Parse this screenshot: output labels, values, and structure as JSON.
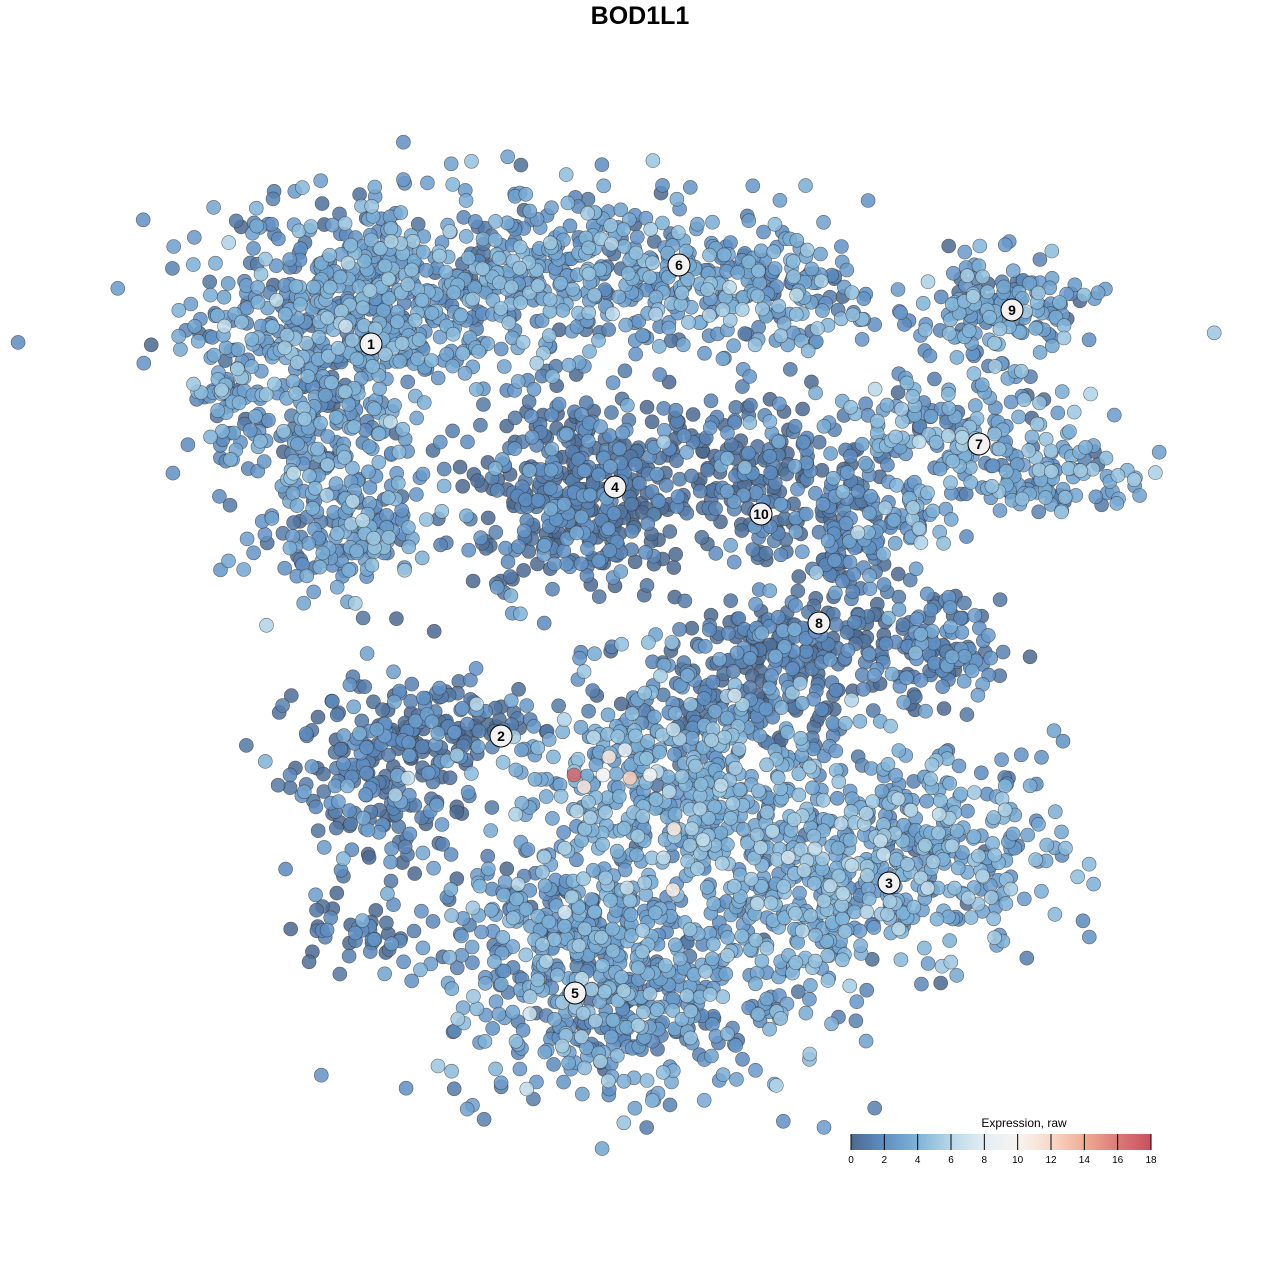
{
  "chart_data": {
    "type": "scatter",
    "title": "BOD1L1",
    "xlabel": "",
    "ylabel": "",
    "grid": false,
    "legend": {
      "title": "Expression, raw",
      "placement": "bottom-right",
      "range": [
        0,
        18
      ],
      "ticks": [
        "0",
        "2",
        "4",
        "6",
        "8",
        "10",
        "12",
        "14",
        "16",
        "18"
      ],
      "colors": [
        "#4b6990",
        "#5f8fc4",
        "#7fb3d8",
        "#b8d8e8",
        "#e4eef4",
        "#f7f4f2",
        "#f9d9c8",
        "#f0ac94",
        "#dc7a78",
        "#c8505e"
      ]
    },
    "point_style": {
      "stroke": "#333333"
    },
    "clusters": [
      {
        "label": "1",
        "label_pos": [
          -26.9,
          29.6
        ],
        "mean_expr": 2.6,
        "blobs": [
          [
            -26,
            34,
            9,
            5,
            520
          ],
          [
            -31,
            22,
            5,
            7,
            320
          ],
          [
            -29,
            10,
            4,
            2.5,
            110
          ],
          [
            -41,
            24,
            2,
            4,
            60
          ]
        ]
      },
      {
        "label": "6",
        "label_pos": [
          3.9,
          37.5
        ],
        "mean_expr": 2.8,
        "blobs": [
          [
            -2,
            37,
            10,
            4,
            360
          ],
          [
            12,
            34,
            5,
            3,
            130
          ]
        ]
      },
      {
        "label": "4",
        "label_pos": [
          -2.5,
          15.3
        ],
        "mean_expr": 0.8,
        "blobs": [
          [
            -6,
            14.5,
            5,
            5,
            420
          ]
        ]
      },
      {
        "label": "10",
        "label_pos": [
          12.1,
          12.6
        ],
        "mean_expr": 1.0,
        "blobs": [
          [
            11,
            18,
            5,
            4,
            160
          ],
          [
            12,
            12,
            2,
            3,
            50
          ]
        ]
      },
      {
        "label": "9",
        "label_pos": [
          37.2,
          33
        ],
        "mean_expr": 2.5,
        "blobs": [
          [
            36,
            33,
            5,
            2.5,
            160
          ]
        ]
      },
      {
        "label": "7",
        "label_pos": [
          33.9,
          19.6
        ],
        "mean_expr": 3.0,
        "blobs": [
          [
            32,
            21,
            6,
            3,
            160
          ],
          [
            42,
            16,
            4,
            2,
            90
          ],
          [
            27,
            13,
            3,
            2,
            50
          ]
        ]
      },
      {
        "label": "8",
        "label_pos": [
          17.9,
          1.7
        ],
        "mean_expr": 1.1,
        "blobs": [
          [
            21,
            8,
            2.5,
            5,
            130
          ],
          [
            29,
            -1,
            3.5,
            2.5,
            130
          ],
          [
            14,
            0,
            5,
            2,
            110
          ],
          [
            10,
            -6,
            6,
            3,
            160
          ]
        ]
      },
      {
        "label": "2",
        "label_pos": [
          -13.9,
          -9.6
        ],
        "mean_expr": 1.0,
        "blobs": [
          [
            -26,
            -14,
            4.5,
            4.5,
            210
          ],
          [
            -18,
            -8,
            4,
            2,
            90
          ],
          [
            -29,
            -29,
            3,
            1.5,
            40
          ]
        ]
      },
      {
        "label": "3",
        "label_pos": [
          24.9,
          -24.3
        ],
        "mean_expr": 3.2,
        "blobs": [
          [
            4,
            -16,
            9,
            6,
            520
          ],
          [
            26,
            -21,
            8,
            5,
            420
          ],
          [
            16,
            -29,
            4,
            4,
            100
          ]
        ]
      },
      {
        "label": "5",
        "label_pos": [
          -6.5,
          -35.3
        ],
        "mean_expr": 2.6,
        "blobs": [
          [
            -2,
            -36,
            9,
            5,
            460
          ],
          [
            -8,
            -28,
            6,
            3,
            160
          ]
        ]
      }
    ],
    "high_points": [
      [
        -6.6,
        -13.5,
        17
      ],
      [
        -5.6,
        -14.7,
        11
      ],
      [
        -3.1,
        -11.7,
        11
      ],
      [
        -1,
        -13.8,
        12.5
      ],
      [
        3.4,
        -18.9,
        11
      ],
      [
        3.3,
        -25,
        10.5
      ],
      [
        -3.7,
        -13.5,
        9
      ],
      [
        1,
        -13.5,
        9.5
      ],
      [
        -1.5,
        -11,
        8.5
      ]
    ]
  }
}
